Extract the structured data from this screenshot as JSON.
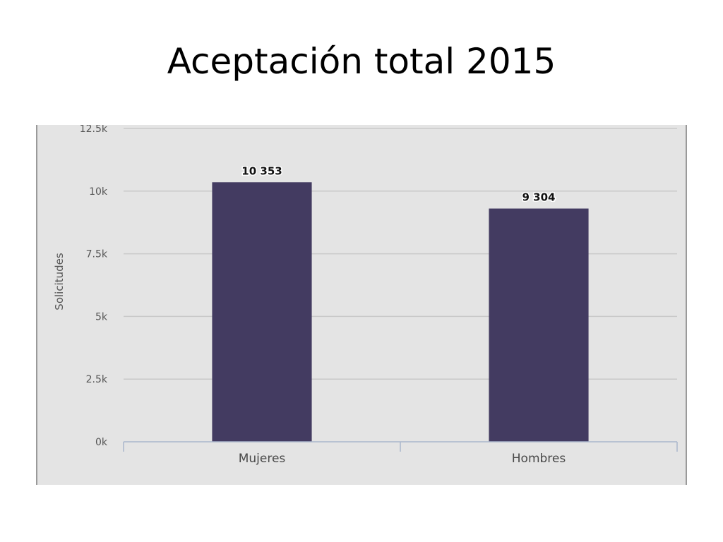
{
  "slide": {
    "title": "Aceptación total 2015"
  },
  "chart_data": {
    "type": "bar",
    "title": "",
    "categories": [
      "Mujeres",
      "Hombres"
    ],
    "values": [
      10353,
      9304
    ],
    "value_labels": [
      "10 353",
      "9 304"
    ],
    "xlabel": "",
    "ylabel": "Solicitudes",
    "ylim": [
      0,
      12500
    ],
    "yticks": [
      0,
      2500,
      5000,
      7500,
      10000,
      12500
    ],
    "ytick_labels": [
      "0k",
      "2.5k",
      "5k",
      "7.5k",
      "10k",
      "12.5k"
    ],
    "grid": true,
    "legend": "none",
    "colors": {
      "bar": "#433b61",
      "grid": "#c9c9c9",
      "axis": "#aab6cc",
      "background": "#e4e4e4"
    }
  }
}
